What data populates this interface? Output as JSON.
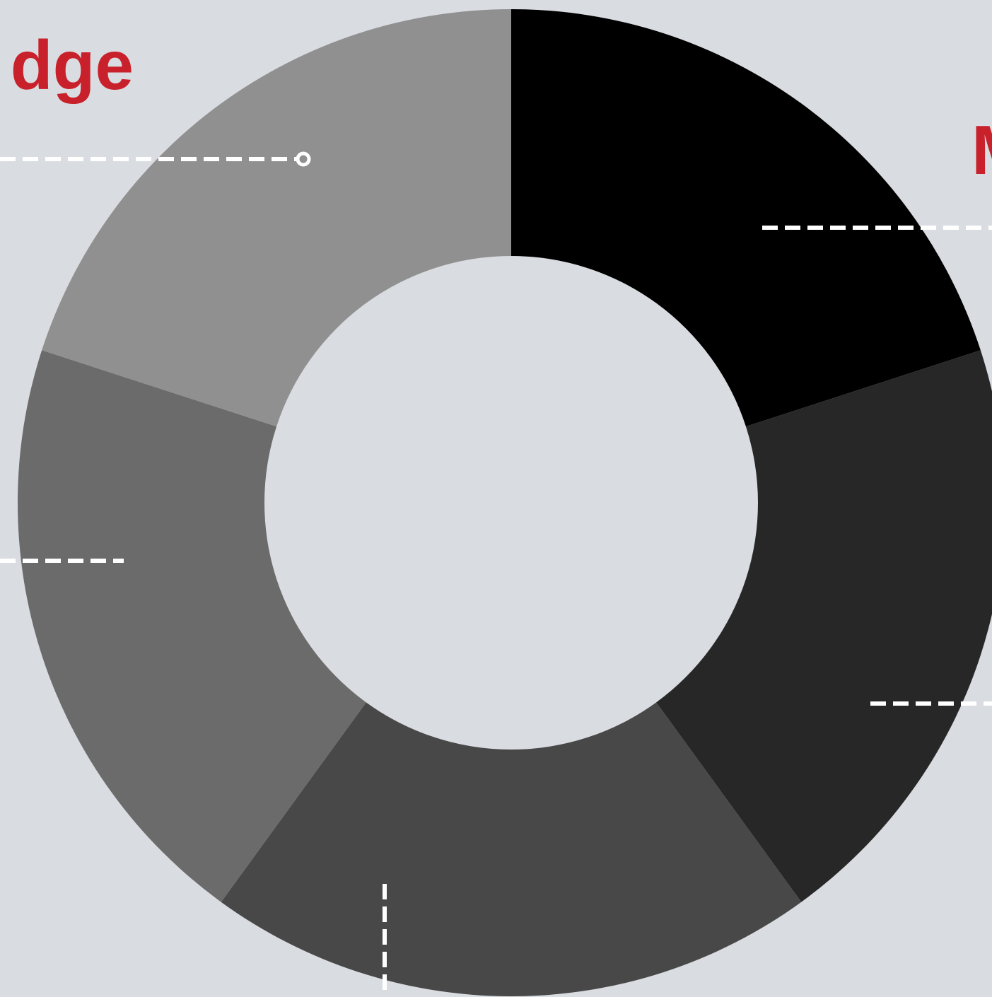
{
  "chart_data": {
    "type": "pie",
    "variant": "donut",
    "title": "",
    "slices": [
      {
        "value": 20,
        "color": "#000000"
      },
      {
        "value": 20,
        "color": "#272727"
      },
      {
        "value": 20,
        "color": "#484848"
      },
      {
        "value": 20,
        "color": "#6b6b6b"
      },
      {
        "value": 20,
        "color": "#909090"
      }
    ],
    "labels": [
      {
        "text": "dge",
        "color": "#c8212b"
      },
      {
        "text": "M",
        "color": "#c8212b"
      }
    ],
    "background_color": "#d9dce0",
    "leader_line_color": "#ffffff",
    "legend": "none"
  }
}
